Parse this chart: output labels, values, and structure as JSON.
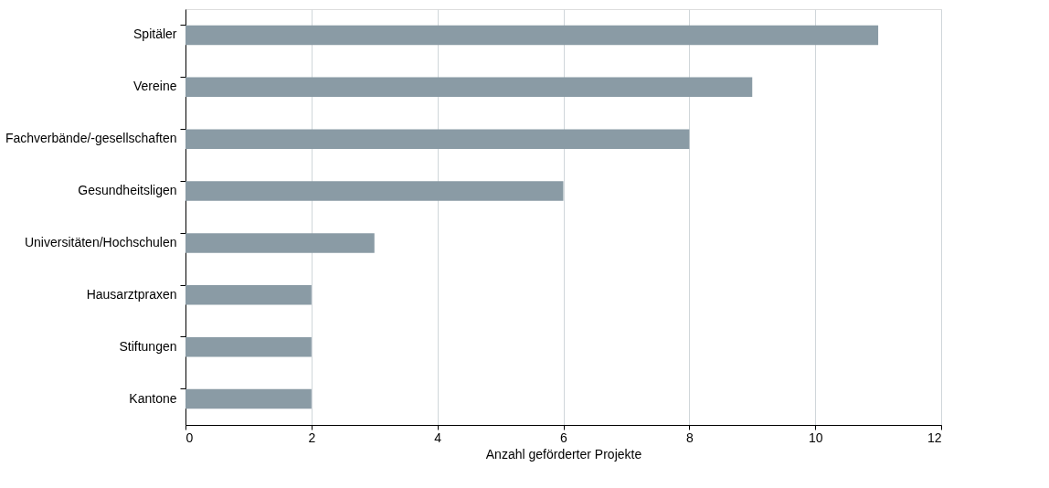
{
  "chart_data": {
    "type": "bar",
    "orientation": "horizontal",
    "xlabel": "Anzahl geförderter Projekte",
    "categories": [
      "Spitäler",
      "Vereine",
      "Fachverbände/-gesellschaften",
      "Gesundheitsligen",
      "Universitäten/Hochschulen",
      "Hausarztpraxen",
      "Stiftungen",
      "Kantone"
    ],
    "values": [
      11,
      9,
      8,
      6,
      3,
      2,
      2,
      2
    ],
    "color": "#8a9ba5",
    "xlim": [
      0,
      12
    ],
    "xticks": [
      0,
      2,
      4,
      6,
      8,
      10,
      12
    ],
    "grid": "x"
  }
}
